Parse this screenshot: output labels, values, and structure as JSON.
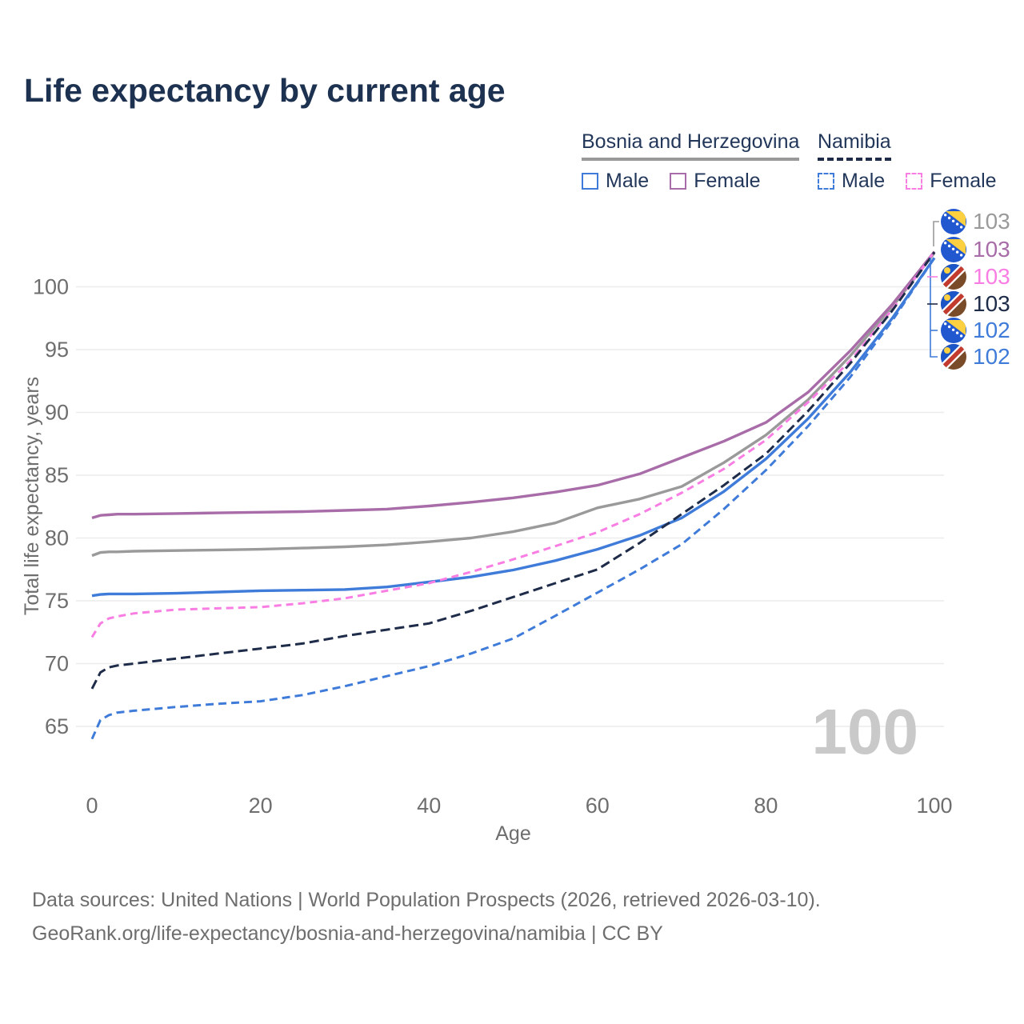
{
  "title": "Life expectancy by current age",
  "legend": {
    "groups": [
      {
        "label": "Bosnia and Herzegovina",
        "line_style": "solid",
        "underline_color": "#999999",
        "entries": [
          {
            "label": "Male",
            "color": "#3F7BD9"
          },
          {
            "label": "Female",
            "color": "#A86CA8"
          }
        ]
      },
      {
        "label": "Namibia",
        "line_style": "dashed",
        "underline_color": "#1E2C49",
        "entries": [
          {
            "label": "Male",
            "color": "#3F7BD9"
          },
          {
            "label": "Female",
            "color": "#F97EE3"
          }
        ]
      }
    ]
  },
  "chart_data": {
    "type": "line",
    "title": "Life expectancy by current age",
    "xlabel": "Age",
    "ylabel": "Total life expectancy, years",
    "x_ticks": [
      0,
      20,
      40,
      60,
      80,
      100
    ],
    "y_ticks": [
      65,
      70,
      75,
      80,
      85,
      90,
      95,
      100
    ],
    "xlim": [
      0,
      100
    ],
    "ylim": [
      63,
      104
    ],
    "grid": "horizontal",
    "legend_position": "top-right",
    "age_counter": "100",
    "x": [
      0,
      1,
      2,
      3,
      5,
      10,
      15,
      20,
      25,
      30,
      35,
      40,
      45,
      50,
      55,
      60,
      65,
      70,
      75,
      80,
      85,
      90,
      95,
      100
    ],
    "series": [
      {
        "id": "bosnia-total",
        "name": "Bosnia and Herzegovina",
        "color": "#9A9A9A",
        "dash": null,
        "values": [
          78.6,
          78.85,
          78.9,
          78.9,
          78.95,
          79.0,
          79.05,
          79.1,
          79.2,
          79.3,
          79.45,
          79.7,
          80.0,
          80.5,
          81.2,
          82.4,
          83.1,
          84.1,
          86.0,
          88.2,
          91.0,
          94.5,
          98.4,
          102.7
        ]
      },
      {
        "id": "bosnia-female",
        "name": "Bosnia and Herzegovina Female",
        "color": "#A86CA8",
        "dash": null,
        "values": [
          81.6,
          81.8,
          81.85,
          81.9,
          81.9,
          81.95,
          82.0,
          82.05,
          82.1,
          82.2,
          82.3,
          82.55,
          82.85,
          83.2,
          83.65,
          84.2,
          85.1,
          86.4,
          87.7,
          89.2,
          91.6,
          94.9,
          98.6,
          102.8
        ]
      },
      {
        "id": "bosnia-male",
        "name": "Bosnia and Herzegovina Male",
        "color": "#3F7BD9",
        "dash": null,
        "values": [
          75.4,
          75.5,
          75.55,
          75.55,
          75.55,
          75.6,
          75.7,
          75.8,
          75.85,
          75.9,
          76.1,
          76.5,
          76.9,
          77.45,
          78.2,
          79.1,
          80.2,
          81.6,
          83.7,
          86.3,
          89.5,
          93.2,
          97.5,
          102.3
        ]
      },
      {
        "id": "namibia-female",
        "name": "Namibia Female",
        "color": "#F97EE3",
        "dash": "9 6",
        "values": [
          72.1,
          73.2,
          73.6,
          73.75,
          74.0,
          74.3,
          74.4,
          74.5,
          74.8,
          75.2,
          75.8,
          76.4,
          77.3,
          78.3,
          79.35,
          80.45,
          81.9,
          83.6,
          85.5,
          87.8,
          90.8,
          94.1,
          98.2,
          102.8
        ]
      },
      {
        "id": "namibia-male",
        "name": "Namibia Male",
        "color": "#3F7BD9",
        "dash": "10 6",
        "values": [
          64.0,
          65.5,
          65.9,
          66.1,
          66.25,
          66.55,
          66.8,
          67.0,
          67.5,
          68.2,
          69.0,
          69.8,
          70.8,
          72.0,
          73.8,
          75.65,
          77.5,
          79.5,
          82.3,
          85.4,
          88.9,
          92.8,
          97.3,
          102.3
        ]
      },
      {
        "id": "namibia-total",
        "name": "Namibia",
        "color": "#1E2C49",
        "dash": "12 6",
        "values": [
          68.0,
          69.3,
          69.7,
          69.85,
          70.0,
          70.4,
          70.8,
          71.2,
          71.6,
          72.2,
          72.7,
          73.2,
          74.2,
          75.3,
          76.4,
          77.5,
          79.6,
          81.9,
          84.2,
          86.7,
          90.1,
          93.9,
          98.1,
          102.75
        ]
      }
    ],
    "end_labels": [
      {
        "flag": "ba",
        "series": "bosnia-total",
        "value": "103",
        "color": "#9A9A9A"
      },
      {
        "flag": "ba",
        "series": "bosnia-female",
        "value": "103",
        "color": "#A86CA8"
      },
      {
        "flag": "na",
        "series": "namibia-female",
        "value": "103",
        "color": "#F97EE3"
      },
      {
        "flag": "na",
        "series": "namibia-total",
        "value": "103",
        "color": "#1E2C49"
      },
      {
        "flag": "ba",
        "series": "bosnia-male",
        "value": "102",
        "color": "#3F7BD9"
      },
      {
        "flag": "na",
        "series": "namibia-male",
        "value": "102",
        "color": "#3F7BD9"
      }
    ]
  },
  "footer": {
    "line1": "Data sources: United Nations | World Population Prospects (2026, retrieved 2026-03-10).",
    "line2": "GeoRank.org/life-expectancy/bosnia-and-herzegovina/namibia | CC BY"
  }
}
